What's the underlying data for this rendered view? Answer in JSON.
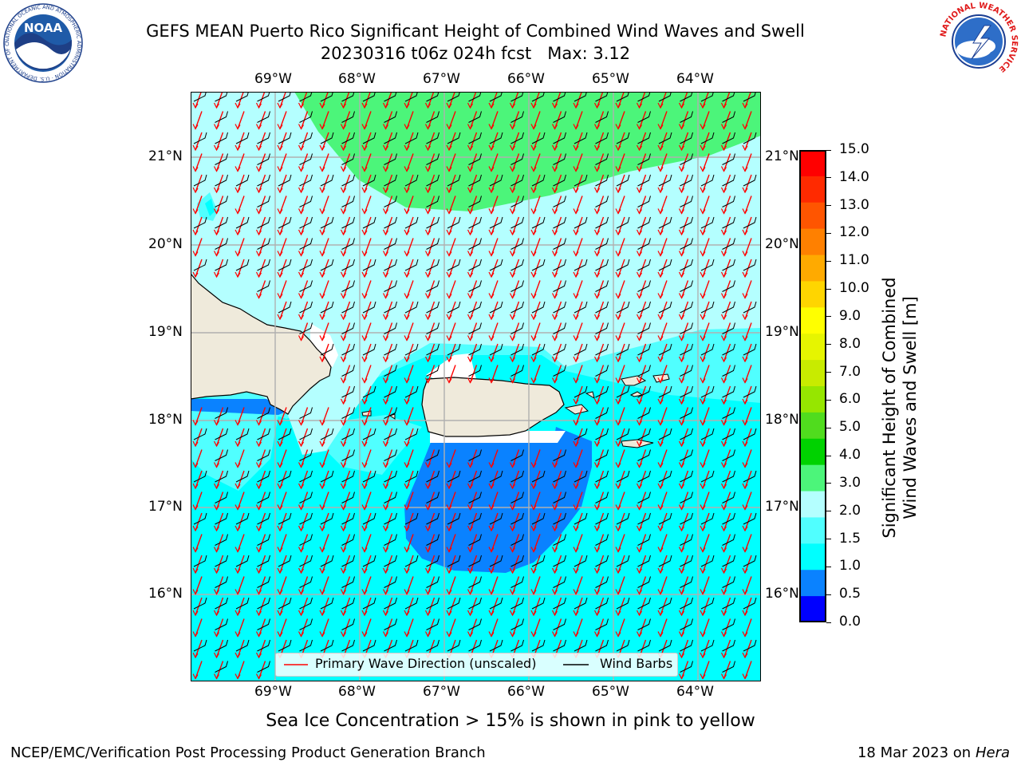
{
  "header": {
    "title_line1": "GEFS MEAN Puerto Rico Significant Height of Combined Wind Waves and Swell",
    "title_line2": "20230316 t06z 024h fcst   Max: 3.12"
  },
  "logos": {
    "noaa_text": "NOAA",
    "noaa_ring_text": "NATIONAL OCEANIC AND ATMOSPHERIC ADMINISTRATION · U.S. DEPARTMENT OF COMMERCE",
    "nws_ring_text": "NATIONAL WEATHER SERVICE"
  },
  "map": {
    "lon_labels": [
      "69°W",
      "68°W",
      "67°W",
      "66°W",
      "65°W",
      "64°W"
    ],
    "lat_labels": [
      "21°N",
      "20°N",
      "19°N",
      "18°N",
      "17°N",
      "16°N"
    ],
    "legend": {
      "wave_label": "Primary Wave Direction (unscaled)",
      "wind_label": "Wind Barbs",
      "wave_color": "#ff0000",
      "wind_color": "#000000"
    }
  },
  "colorbar": {
    "label_line1": "Significant Height of Combined",
    "label_line2": "Wind Waves and Swell [m]",
    "ticks": [
      "15.0",
      "14.0",
      "13.0",
      "12.0",
      "11.0",
      "10.0",
      "9.0",
      "8.0",
      "7.0",
      "6.0",
      "5.0",
      "4.0",
      "3.0",
      "2.0",
      "1.5",
      "1.0",
      "0.5",
      "0.0"
    ],
    "colors": [
      "#ff0000",
      "#ff2a00",
      "#ff5500",
      "#ff8000",
      "#ffaa00",
      "#ffd500",
      "#ffff00",
      "#e6f500",
      "#c8eb00",
      "#96e600",
      "#50dc1e",
      "#00d200",
      "#4cf57a",
      "#b4ffff",
      "#50ffff",
      "#00ffff",
      "#0a82ff",
      "#0000ff"
    ]
  },
  "footer": {
    "note": "Sea Ice Concentration > 15% is shown in pink to yellow",
    "left": "NCEP/EMC/Verification Post Processing Product Generation Branch",
    "right_date": "18 Mar 2023 on",
    "right_host": "Hera"
  },
  "colors": {
    "land": "#efeadb",
    "sea_1_1_5": "#00ffff",
    "sea_1_5_2": "#50ffff",
    "sea_2_3": "#b4ffff",
    "sea_3_4": "#4cf57a",
    "sea_0_5_1": "#0a82ff"
  }
}
